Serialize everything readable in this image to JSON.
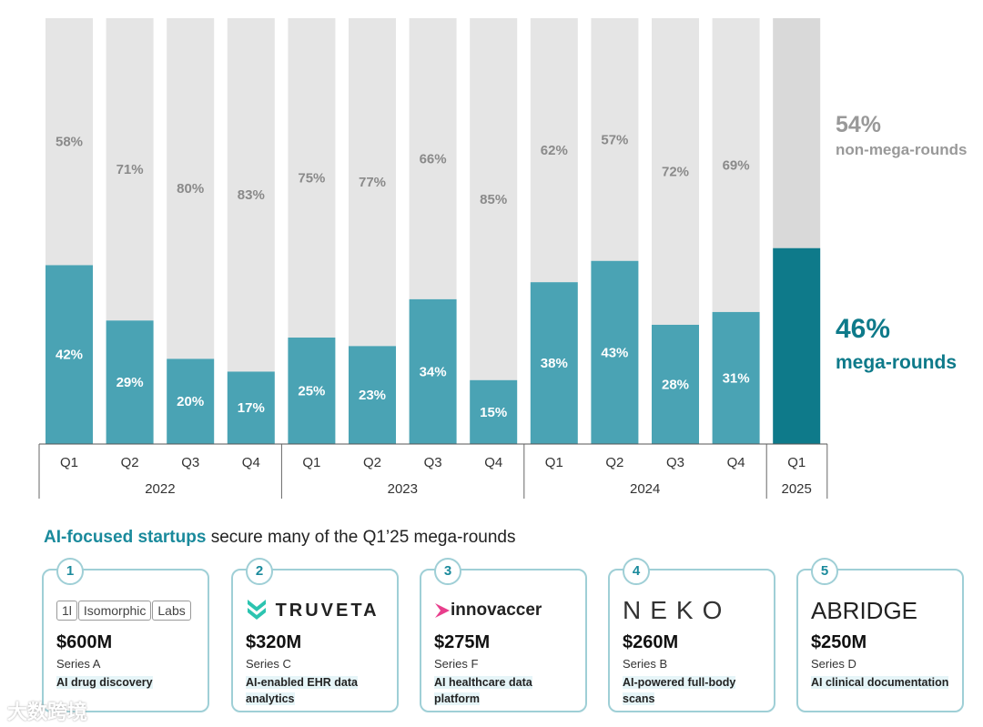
{
  "chart_data": {
    "type": "bar",
    "stacked": true,
    "groups": [
      {
        "year": "2022",
        "quarters": [
          "Q1",
          "Q2",
          "Q3",
          "Q4"
        ]
      },
      {
        "year": "2023",
        "quarters": [
          "Q1",
          "Q2",
          "Q3",
          "Q4"
        ]
      },
      {
        "year": "2024",
        "quarters": [
          "Q1",
          "Q2",
          "Q3",
          "Q4"
        ]
      },
      {
        "year": "2025",
        "quarters": [
          "Q1"
        ]
      }
    ],
    "series": [
      {
        "name": "mega-rounds",
        "values": [
          42,
          29,
          20,
          17,
          25,
          23,
          34,
          15,
          38,
          43,
          28,
          31,
          46
        ],
        "color": "#4aa3b4",
        "highlight_color": "#0e7a8a"
      },
      {
        "name": "non-mega-rounds",
        "values": [
          58,
          71,
          80,
          83,
          75,
          77,
          66,
          85,
          62,
          57,
          72,
          69,
          54
        ],
        "color": "#e5e5e5",
        "highlight_color": "#d9d9d9"
      }
    ],
    "ylim": [
      0,
      100
    ],
    "unit": "%",
    "legend": {
      "non_mega_pct": "54%",
      "non_mega_label": "non-mega-rounds",
      "mega_pct": "46%",
      "mega_label": "mega-rounds"
    }
  },
  "section": {
    "title_highlight": "AI-focused startups",
    "title_rest": " secure many of the Q1’25 mega-rounds"
  },
  "cards": [
    {
      "rank": "1",
      "company": "Isomorphic Labs",
      "logo_parts": [
        "1l",
        "Isomorphic",
        "Labs"
      ],
      "amount": "$600M",
      "series": "Series A",
      "description": "AI drug discovery"
    },
    {
      "rank": "2",
      "company": "TRUVETA",
      "amount": "$320M",
      "series": "Series C",
      "description": "AI-enabled EHR data analytics"
    },
    {
      "rank": "3",
      "company": "innovaccer",
      "amount": "$275M",
      "series": "Series F",
      "description": "AI healthcare data platform"
    },
    {
      "rank": "4",
      "company": "NEKO",
      "amount": "$260M",
      "series": "Series B",
      "description": "AI-powered full-body scans"
    },
    {
      "rank": "5",
      "company": "ABRIDGE",
      "amount": "$250M",
      "series": "Series D",
      "description": "AI clinical documentation"
    }
  ],
  "watermark": "大数跨境"
}
